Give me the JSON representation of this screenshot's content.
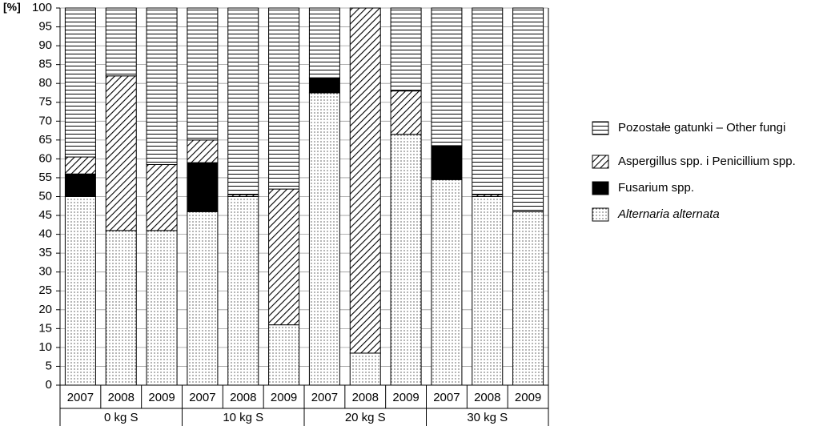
{
  "chart_data": {
    "type": "stacked_bar",
    "y_label": "[%]",
    "categories": [
      "2007",
      "2008",
      "2009",
      "2007",
      "2008",
      "2009",
      "2007",
      "2008",
      "2009",
      "2007",
      "2008",
      "2009"
    ],
    "groups": [
      "0 kg S",
      "10 kg S",
      "20 kg S",
      "30 kg S"
    ],
    "series": [
      {
        "name": "Alternaria alternata",
        "pattern": "dots",
        "color": "#000000",
        "values": [
          50,
          41,
          41,
          46,
          50,
          16,
          77.5,
          8.5,
          66.5,
          54.5,
          50,
          46
        ]
      },
      {
        "name": "Fusarium spp.",
        "pattern": "solid",
        "color": "#000000",
        "values": [
          6,
          0,
          0,
          13,
          0,
          0,
          4,
          0,
          0,
          9,
          0,
          0
        ]
      },
      {
        "name": "Aspergillus spp. i Penicillium spp.",
        "pattern": "diag",
        "color": "#000000",
        "values": [
          4.5,
          41,
          17.5,
          6,
          0.5,
          36,
          0,
          91.5,
          11.5,
          0,
          0.5,
          0
        ]
      },
      {
        "name": "Pozostałe gatunki – Other fungi",
        "pattern": "hlines",
        "color": "#000000",
        "values": [
          39.5,
          18,
          41.5,
          35,
          49.5,
          48,
          18.5,
          0,
          22,
          36.5,
          49.5,
          54
        ]
      }
    ],
    "ylim": [
      0,
      100
    ],
    "yticks": [
      0,
      5,
      10,
      15,
      20,
      25,
      30,
      35,
      40,
      45,
      50,
      55,
      60,
      65,
      70,
      75,
      80,
      85,
      90,
      95,
      100
    ],
    "grid": true
  }
}
